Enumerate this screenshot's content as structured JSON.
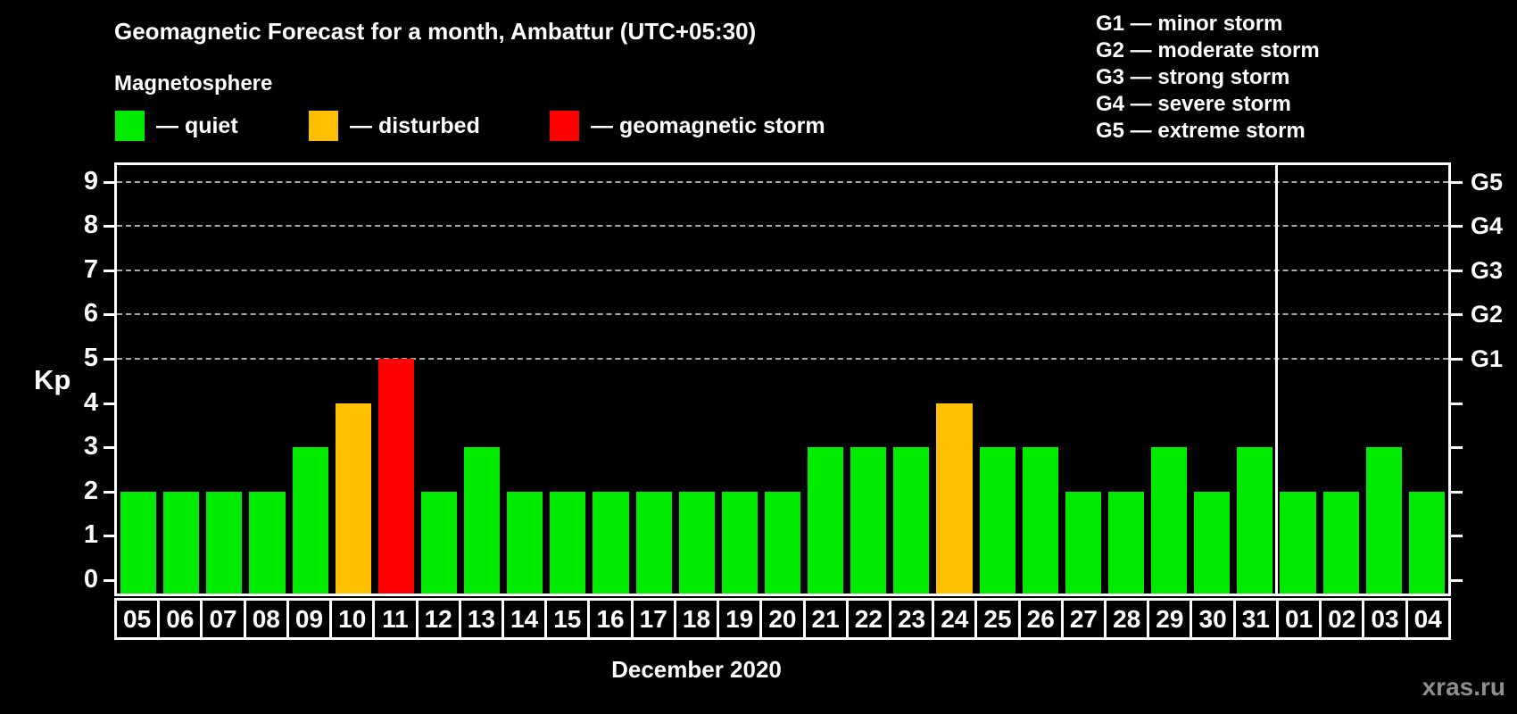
{
  "title": "Geomagnetic Forecast for a month, Ambattur (UTC+05:30)",
  "subtitle": "Magnetosphere",
  "legend": {
    "items": [
      {
        "key": "quiet",
        "label": "— quiet",
        "color": "#00EB00"
      },
      {
        "key": "disturbed",
        "label": "— disturbed",
        "color": "#FFC000"
      },
      {
        "key": "storm",
        "label": "— geomagnetic storm",
        "color": "#FF0000"
      }
    ]
  },
  "g_scale_legend": [
    "G1 — minor storm",
    "G2 — moderate storm",
    "G3 — strong storm",
    "G4 — severe storm",
    "G5 — extreme storm"
  ],
  "y_axis": {
    "label": "Kp",
    "ticks": [
      0,
      1,
      2,
      3,
      4,
      5,
      6,
      7,
      8,
      9
    ]
  },
  "right_axis": {
    "labels": [
      {
        "kp": 5,
        "label": "G1"
      },
      {
        "kp": 6,
        "label": "G2"
      },
      {
        "kp": 7,
        "label": "G3"
      },
      {
        "kp": 8,
        "label": "G4"
      },
      {
        "kp": 9,
        "label": "G5"
      }
    ]
  },
  "x_axis_label": "December 2020",
  "watermark": "xras.ru",
  "chart_data": {
    "type": "bar",
    "title": "Geomagnetic Forecast for a month, Ambattur (UTC+05:30)",
    "xlabel": "December 2020",
    "ylabel": "Kp",
    "ylim": [
      0,
      9
    ],
    "grid_levels": [
      5,
      6,
      7,
      8,
      9
    ],
    "grid": "dashed horizontal at Kp 5-9 only",
    "legend_position": "top",
    "categories": [
      "05",
      "06",
      "07",
      "08",
      "09",
      "10",
      "11",
      "12",
      "13",
      "14",
      "15",
      "16",
      "17",
      "18",
      "19",
      "20",
      "21",
      "22",
      "23",
      "24",
      "25",
      "26",
      "27",
      "28",
      "29",
      "30",
      "31",
      "01",
      "02",
      "03",
      "04"
    ],
    "values": [
      2,
      2,
      2,
      2,
      3,
      4,
      5,
      2,
      3,
      2,
      2,
      2,
      2,
      2,
      2,
      2,
      3,
      3,
      3,
      4,
      3,
      3,
      2,
      2,
      3,
      2,
      3,
      2,
      2,
      3,
      2
    ],
    "statuses": [
      "quiet",
      "quiet",
      "quiet",
      "quiet",
      "quiet",
      "disturbed",
      "storm",
      "quiet",
      "quiet",
      "quiet",
      "quiet",
      "quiet",
      "quiet",
      "quiet",
      "quiet",
      "quiet",
      "quiet",
      "quiet",
      "quiet",
      "disturbed",
      "quiet",
      "quiet",
      "quiet",
      "quiet",
      "quiet",
      "quiet",
      "quiet",
      "quiet",
      "quiet",
      "quiet",
      "quiet"
    ],
    "status_colors": {
      "quiet": "#00EB00",
      "disturbed": "#FFC000",
      "storm": "#FF0000"
    },
    "month_separator_after_index": 27
  }
}
